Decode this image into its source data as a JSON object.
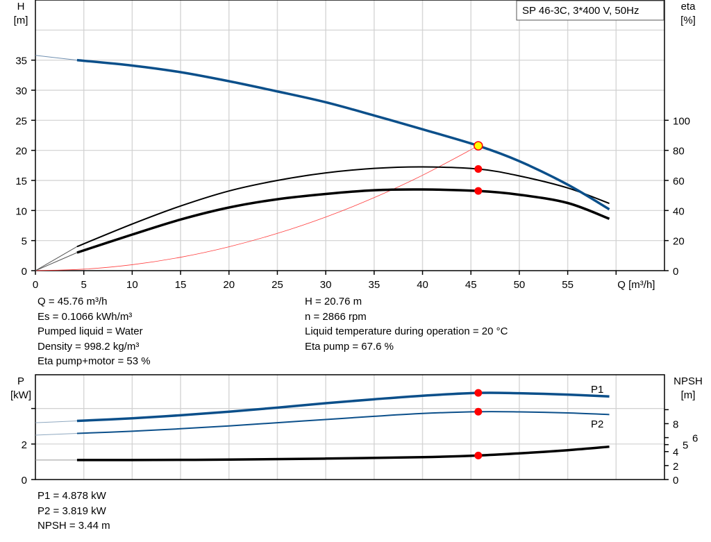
{
  "chart_data": [
    {
      "type": "line",
      "title": "SP 46-3C, 3*400 V, 50Hz",
      "xlabel": "Q [m³/h]",
      "ylabel_left": [
        "H",
        "[m]"
      ],
      "ylabel_right": [
        "eta",
        "[%]"
      ],
      "xlim": [
        0,
        65
      ],
      "ylim_left": [
        0,
        45
      ],
      "ylim_right": [
        0,
        180
      ],
      "x_ticks": [
        0,
        5,
        10,
        15,
        20,
        25,
        30,
        35,
        40,
        45,
        50,
        55
      ],
      "y_ticks_left": [
        0,
        5,
        10,
        15,
        20,
        25,
        30,
        35
      ],
      "y_ticks_right": [
        0,
        20,
        40,
        60,
        80,
        100
      ],
      "grid": true,
      "colors": {
        "head": "#0b4f8a",
        "eta": "#000000",
        "system": "#ff3b3b",
        "marker": "#ff0000",
        "duty": "#ffff00"
      },
      "series": [
        {
          "key": "H",
          "axis": "left",
          "q": [
            0,
            4.3,
            10,
            15,
            20,
            25,
            30,
            35,
            40,
            45.76,
            50,
            55,
            59.3
          ],
          "values": [
            35.8,
            35,
            34.1,
            33,
            31.5,
            29.8,
            28,
            25.8,
            23.5,
            20.76,
            18.2,
            14.3,
            10.2
          ],
          "extrapolated_below": 4.3
        },
        {
          "key": "eta_pump",
          "axis": "right",
          "q": [
            0,
            4.3,
            10,
            15,
            20,
            25,
            30,
            35,
            40,
            45.76,
            50,
            55,
            59.3
          ],
          "values": [
            0,
            16,
            31,
            43,
            53,
            60,
            65,
            68,
            69,
            67.6,
            63,
            55,
            44.7
          ],
          "extrapolated_below": 4.3
        },
        {
          "key": "eta_pump_motor",
          "axis": "right",
          "q": [
            0,
            4.3,
            10,
            15,
            20,
            25,
            30,
            35,
            40,
            45.76,
            50,
            55,
            59.3
          ],
          "values": [
            0,
            12,
            24,
            34,
            42,
            47.5,
            51,
            53.5,
            54,
            53,
            50.5,
            45,
            34.5
          ],
          "extrapolated_below": 4.3
        },
        {
          "key": "system",
          "axis": "left",
          "q": [
            0,
            5,
            10,
            15,
            20,
            25,
            30,
            35,
            40,
            45.76
          ],
          "values": [
            0,
            0.25,
            0.99,
            2.23,
            3.97,
            6.2,
            8.92,
            12.14,
            15.86,
            20.76
          ]
        }
      ],
      "duty_point": {
        "q": 45.76,
        "h": 20.76,
        "eta_pump": 67.6,
        "eta_pump_motor": 53
      }
    },
    {
      "type": "line",
      "xlim": [
        0,
        65
      ],
      "ylim_left": [
        0,
        5.9
      ],
      "ylim_right": [
        0,
        15
      ],
      "ylabel_left": [
        "P",
        "[kW]"
      ],
      "ylabel_right": [
        "NPSH",
        "[m]"
      ],
      "y_ticks_left": [
        0,
        2,
        4
      ],
      "y_tick_labels_left": [
        "0",
        "2",
        ""
      ],
      "y_ticks_right": [
        0,
        2,
        4,
        5,
        6,
        8,
        10
      ],
      "y_tick_labels_right": [
        "0",
        "2",
        "4",
        "5",
        "6",
        "8",
        ""
      ],
      "grid": true,
      "series": [
        {
          "name": "P1",
          "axis": "left",
          "q": [
            0,
            4.3,
            10,
            15,
            20,
            25,
            30,
            35,
            40,
            45.76,
            50,
            55,
            59.3
          ],
          "values": [
            3.2,
            3.3,
            3.45,
            3.62,
            3.82,
            4.05,
            4.3,
            4.52,
            4.72,
            4.878,
            4.86,
            4.78,
            4.68
          ],
          "extrapolated_below": 4.3
        },
        {
          "name": "P2",
          "axis": "left",
          "q": [
            0,
            4.3,
            10,
            15,
            20,
            25,
            30,
            35,
            40,
            45.76,
            50,
            55,
            59.3
          ],
          "values": [
            2.5,
            2.6,
            2.72,
            2.86,
            3.02,
            3.2,
            3.38,
            3.56,
            3.72,
            3.819,
            3.81,
            3.75,
            3.66
          ],
          "extrapolated_below": 4.3
        },
        {
          "key": "NPSH",
          "axis": "right",
          "q": [
            0,
            4.3,
            10,
            20,
            30,
            40,
            45.76,
            50,
            55,
            59.3
          ],
          "values": [
            2.8,
            2.8,
            2.8,
            2.85,
            3.0,
            3.2,
            3.44,
            3.75,
            4.2,
            4.7
          ],
          "extrapolated_below": 4.3
        }
      ],
      "duty_point": {
        "q": 45.76,
        "p1": 4.878,
        "p2": 3.819,
        "npsh": 3.44
      }
    }
  ],
  "info_top_left": [
    "Q = 45.76 m³/h",
    "Es = 0.1066 kWh/m³",
    "Pumped liquid = Water",
    "Density = 998.2 kg/m³",
    "Eta pump+motor = 53 %"
  ],
  "info_top_right": [
    "H = 20.76 m",
    "n = 2866 rpm",
    "Liquid temperature during operation = 20 °C",
    "Eta pump = 67.6 %"
  ],
  "info_bottom": [
    "P1 = 4.878 kW",
    "P2 = 3.819 kW",
    "NPSH = 3.44 m"
  ]
}
